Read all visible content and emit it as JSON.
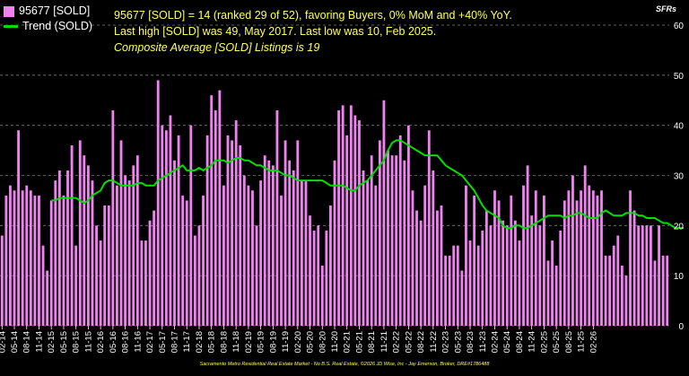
{
  "header": {
    "summary_line1": "95677 [SOLD] = 14 (ranked 29 of 52), favoring Buyers, 0% MoM and +40% YoY.",
    "summary_line2": "Last high [SOLD] was 49, May 2017. Last low was 10, Feb 2025.",
    "composite": "Composite Average [SOLD] Listings is 19",
    "corner_label": "SFRs"
  },
  "footer": "Sacramento Metro Residential Real Estate Market - No B.S. Real Estate, ©2026 JD Wise, Inc - Jay Emerson, Broker, DRE#1786488",
  "colors": {
    "bar": "#ee82ee",
    "trend": "#00e000",
    "grid": "#7a7a7a",
    "background": "#000000",
    "text_highlight": "#ffff66"
  },
  "chart_data": {
    "type": "bar",
    "title": "",
    "xlabel": "",
    "ylabel": "",
    "ylim": [
      0,
      60
    ],
    "yticks": [
      0,
      10,
      20,
      30,
      40,
      50,
      60
    ],
    "y_axis_side": "right",
    "grid": true,
    "legend_position": "top-left",
    "x_tick_labels": [
      "02-14",
      "05-14",
      "08-14",
      "11-14",
      "02-15",
      "05-15",
      "08-15",
      "11-15",
      "02-16",
      "05-16",
      "08-16",
      "11-16",
      "02-17",
      "05-17",
      "08-17",
      "11-17",
      "02-18",
      "05-18",
      "08-18",
      "11-18",
      "02-19",
      "05-19",
      "08-19",
      "11-19",
      "02-20",
      "05-20",
      "08-20",
      "11-20",
      "02-21",
      "05-21",
      "08-21",
      "11-21",
      "02-22",
      "05-22",
      "08-22",
      "11-22",
      "02-23",
      "05-23",
      "08-23",
      "11-23",
      "02-24",
      "05-24",
      "08-24",
      "11-24",
      "02-25",
      "05-25",
      "08-25",
      "11-25",
      "02-26"
    ],
    "series": [
      {
        "name": "95677 [SOLD]",
        "kind": "bar",
        "values": [
          18,
          26,
          28,
          27,
          39,
          27,
          28,
          27,
          26,
          26,
          16,
          11,
          25,
          29,
          31,
          26,
          31,
          36,
          16,
          37,
          34,
          32,
          29,
          20,
          17,
          24,
          24,
          43,
          28,
          37,
          30,
          29,
          32,
          34,
          17,
          17,
          21,
          23,
          49,
          40,
          39,
          42,
          33,
          38,
          26,
          25,
          40,
          18,
          20,
          26,
          38,
          46,
          43,
          47,
          28,
          38,
          37,
          41,
          36,
          30,
          28,
          27,
          20,
          29,
          34,
          33,
          32,
          43,
          26,
          37,
          33,
          31,
          37,
          29,
          29,
          22,
          19,
          20,
          12,
          19,
          24,
          33,
          43,
          44,
          38,
          44,
          42,
          41,
          31,
          29,
          34,
          28,
          37,
          45,
          35,
          34,
          34,
          38,
          33,
          40,
          27,
          23,
          21,
          28,
          39,
          31,
          23,
          24,
          14,
          14,
          16,
          16,
          11,
          28,
          17,
          26,
          16,
          19,
          23,
          20,
          27,
          25,
          21,
          20,
          26,
          21,
          17,
          28,
          32,
          22,
          27,
          20,
          26,
          13,
          17,
          12,
          19,
          25,
          27,
          30,
          25,
          27,
          32,
          28,
          27,
          26,
          27,
          14,
          14,
          16,
          18,
          12,
          10,
          27,
          23,
          20,
          20,
          20,
          20,
          13,
          20,
          14,
          14
        ]
      },
      {
        "name": "Trend (SOLD)",
        "kind": "line",
        "start_index": 12,
        "values": [
          25,
          25,
          25.5,
          25.5,
          25.5,
          25.5,
          25.5,
          25,
          24.5,
          25,
          26,
          26.5,
          27,
          28.5,
          29,
          29,
          28.5,
          28,
          28,
          28,
          28,
          28.5,
          28.5,
          28,
          28,
          28,
          29,
          29.5,
          30,
          30.5,
          31,
          31.5,
          32,
          31,
          31,
          31,
          31.5,
          31,
          31.5,
          32,
          33,
          33,
          33,
          32.5,
          33,
          33.5,
          33.5,
          33,
          33,
          32.5,
          32,
          32,
          31.5,
          31,
          31,
          31,
          30.5,
          30,
          30,
          29.5,
          29,
          29,
          29,
          29,
          29,
          29,
          29,
          28.5,
          28,
          28,
          28,
          28,
          27.5,
          27,
          27,
          28,
          28.5,
          29,
          30,
          31,
          32,
          33,
          35,
          36.5,
          37,
          37,
          36.5,
          36,
          35.5,
          35,
          34.5,
          34,
          34,
          34,
          34,
          33,
          32,
          31.5,
          31,
          30.5,
          30,
          29,
          28,
          27,
          25.5,
          24,
          23,
          22.5,
          22,
          21.5,
          20,
          19.5,
          19.5,
          20,
          20,
          19.5,
          19.5,
          20,
          20.5,
          21,
          21.5,
          22,
          22,
          22,
          22,
          21.5,
          22,
          22,
          22.5,
          22.5,
          22,
          21.5,
          21.5,
          21.5,
          22.5,
          23,
          22.5,
          22,
          22,
          22,
          22.5,
          22.5,
          22.5,
          22,
          22,
          21.5,
          21.5,
          21.5,
          21,
          20.5,
          20.5,
          20,
          19.5,
          19.5,
          19.5
        ]
      }
    ]
  }
}
